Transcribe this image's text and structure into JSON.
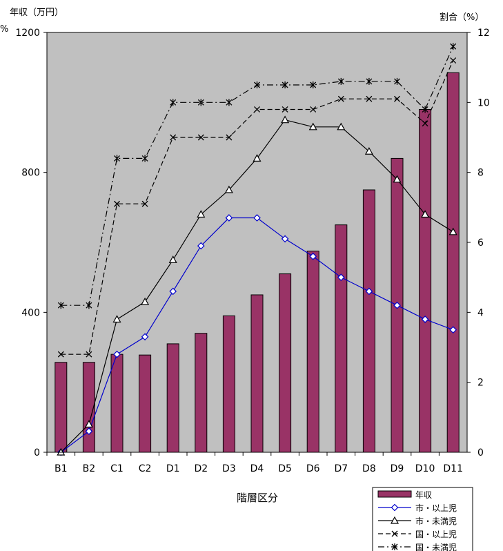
{
  "chart_data": {
    "type": "bar",
    "y_axis_left": {
      "title": "年収（万円）",
      "unit_mark": "%",
      "ticks": [
        "0",
        "400",
        "800",
        "1200"
      ],
      "range": [
        0,
        1200
      ]
    },
    "y_axis_right": {
      "title": "割合（%）",
      "ticks": [
        "0",
        "2",
        "4",
        "6",
        "8",
        "10",
        "12"
      ],
      "range": [
        0,
        12
      ]
    },
    "xlabel": "階層区分",
    "categories": [
      "B1",
      "B2",
      "C1",
      "C2",
      "D1",
      "D2",
      "D3",
      "D4",
      "D5",
      "D6",
      "D7",
      "D8",
      "D9",
      "D10",
      "D11"
    ],
    "grid": false,
    "legend_position": "bottom-right",
    "series": [
      {
        "name": "年収",
        "kind": "bar",
        "axis": "left",
        "color": "#993366",
        "values": [
          257,
          257,
          280,
          278,
          310,
          340,
          390,
          450,
          510,
          575,
          650,
          750,
          840,
          980,
          1085
        ]
      },
      {
        "name": "市・以上児",
        "kind": "line",
        "axis": "right",
        "color": "#0000cc",
        "marker": "diamond",
        "dash": "solid",
        "values": [
          0.0,
          0.6,
          2.8,
          3.3,
          4.6,
          5.9,
          6.7,
          6.7,
          6.1,
          5.6,
          5.0,
          4.6,
          4.2,
          3.8,
          3.5
        ]
      },
      {
        "name": "市・未満児",
        "kind": "line",
        "axis": "right",
        "color": "#000000",
        "marker": "triangle",
        "dash": "solid",
        "values": [
          0.0,
          0.8,
          3.8,
          4.3,
          5.5,
          6.8,
          7.5,
          8.4,
          9.5,
          9.3,
          9.3,
          8.6,
          7.8,
          6.8,
          6.3
        ]
      },
      {
        "name": "国・以上児",
        "kind": "line",
        "axis": "right",
        "color": "#000000",
        "marker": "x",
        "dash": "dash",
        "values": [
          2.8,
          2.8,
          7.1,
          7.1,
          9.0,
          9.0,
          9.0,
          9.8,
          9.8,
          9.8,
          10.1,
          10.1,
          10.1,
          9.4,
          11.2
        ]
      },
      {
        "name": "国・未満児",
        "kind": "line",
        "axis": "right",
        "color": "#000000",
        "marker": "star",
        "dash": "dashdot",
        "values": [
          4.2,
          4.2,
          8.4,
          8.4,
          10.0,
          10.0,
          10.0,
          10.5,
          10.5,
          10.5,
          10.6,
          10.6,
          10.6,
          9.8,
          11.6
        ]
      }
    ]
  }
}
